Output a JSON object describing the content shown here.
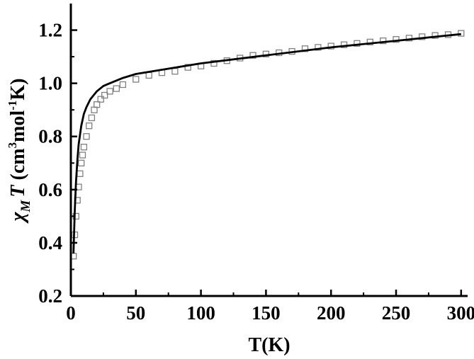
{
  "chart_data": {
    "type": "scatter",
    "title": "",
    "xlabel": "T(K)",
    "ylabel": {
      "chi": "χ",
      "chi_sub": "M",
      "T": "T",
      "units_open": " (cm",
      "units_sup1": "3",
      "units_mid": "mol",
      "units_sup2": "-1",
      "units_close": "K)"
    },
    "xlim": [
      0,
      305
    ],
    "ylim": [
      0.2,
      1.3
    ],
    "xticks": [
      0,
      50,
      100,
      150,
      200,
      250,
      300
    ],
    "xtick_labels": [
      "0",
      "50",
      "100",
      "150",
      "200",
      "250",
      "300"
    ],
    "yticks": [
      0.2,
      0.4,
      0.6,
      0.8,
      1.0,
      1.2
    ],
    "ytick_labels": [
      "0.2",
      "0.4",
      "0.6",
      "0.8",
      "1.0",
      "1.2"
    ],
    "grid": false,
    "legend": "none",
    "series": [
      {
        "kind": "markers",
        "marker": "open-square",
        "color": "#808080",
        "x": [
          2,
          3,
          4,
          5,
          6,
          7,
          8,
          9,
          10,
          12,
          14,
          16,
          18,
          20,
          23,
          26,
          30,
          35,
          40,
          50,
          60,
          70,
          80,
          90,
          100,
          110,
          120,
          130,
          140,
          150,
          160,
          170,
          180,
          190,
          200,
          210,
          220,
          230,
          240,
          250,
          260,
          270,
          280,
          290,
          300
        ],
        "y": [
          0.35,
          0.43,
          0.5,
          0.56,
          0.61,
          0.66,
          0.7,
          0.73,
          0.76,
          0.8,
          0.84,
          0.87,
          0.9,
          0.92,
          0.94,
          0.955,
          0.97,
          0.98,
          0.995,
          1.015,
          1.03,
          1.04,
          1.045,
          1.06,
          1.065,
          1.075,
          1.085,
          1.095,
          1.105,
          1.11,
          1.115,
          1.12,
          1.13,
          1.135,
          1.14,
          1.145,
          1.15,
          1.155,
          1.16,
          1.165,
          1.17,
          1.175,
          1.18,
          1.183,
          1.188
        ]
      },
      {
        "kind": "fit-line",
        "color": "#000000",
        "x": [
          2,
          3,
          4,
          5,
          6,
          8,
          10,
          12,
          15,
          20,
          25,
          30,
          40,
          50,
          75,
          100,
          150,
          200,
          250,
          300
        ],
        "y": [
          0.36,
          0.52,
          0.63,
          0.71,
          0.77,
          0.84,
          0.885,
          0.91,
          0.94,
          0.97,
          0.99,
          1.0,
          1.02,
          1.035,
          1.055,
          1.075,
          1.105,
          1.135,
          1.16,
          1.185
        ]
      }
    ]
  }
}
